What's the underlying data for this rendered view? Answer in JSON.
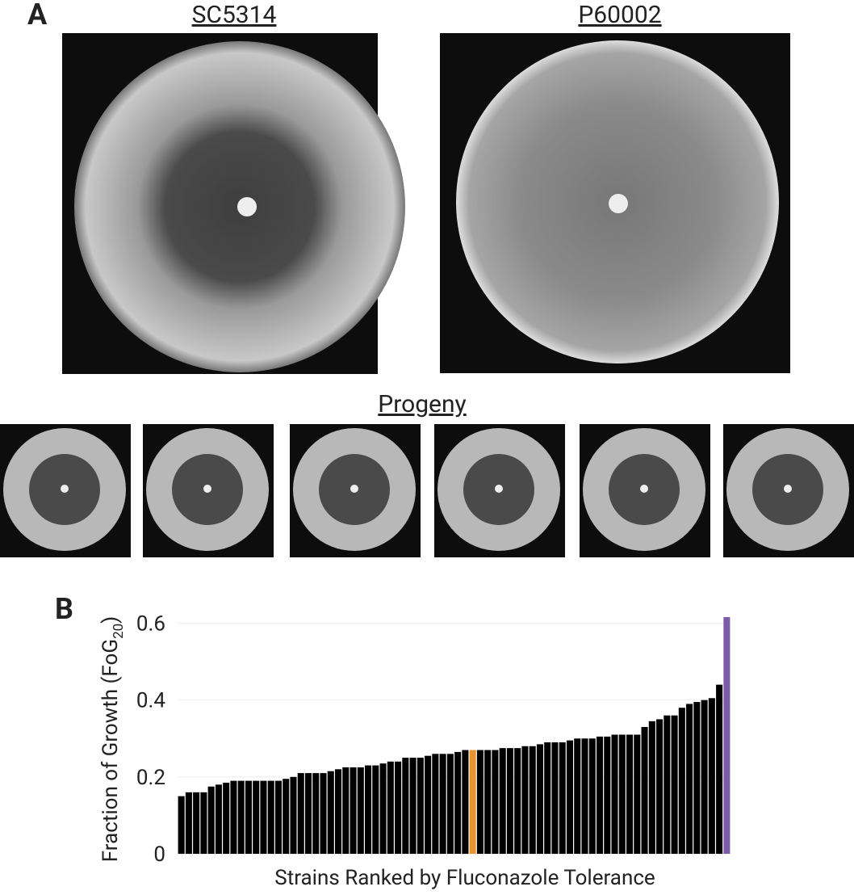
{
  "panel_a": {
    "label": "A",
    "strain_1": "SC5314",
    "strain_2": "P60002",
    "progeny": "Progeny"
  },
  "chart_data": {
    "type": "bar",
    "panel_label": "B",
    "ylabel_parts": [
      "Fraction of Growth (FoG",
      "20",
      ")"
    ],
    "xlabel": "Strains Ranked by Fluconazole Tolerance",
    "values": [
      0.15,
      0.16,
      0.16,
      0.16,
      0.175,
      0.18,
      0.185,
      0.19,
      0.19,
      0.19,
      0.19,
      0.19,
      0.19,
      0.19,
      0.195,
      0.2,
      0.21,
      0.21,
      0.21,
      0.21,
      0.215,
      0.22,
      0.225,
      0.225,
      0.225,
      0.23,
      0.23,
      0.235,
      0.24,
      0.24,
      0.25,
      0.25,
      0.25,
      0.255,
      0.26,
      0.26,
      0.26,
      0.265,
      0.27,
      0.27,
      0.27,
      0.27,
      0.27,
      0.275,
      0.275,
      0.275,
      0.28,
      0.28,
      0.285,
      0.29,
      0.29,
      0.29,
      0.295,
      0.3,
      0.3,
      0.3,
      0.305,
      0.305,
      0.31,
      0.31,
      0.31,
      0.31,
      0.33,
      0.345,
      0.35,
      0.36,
      0.36,
      0.38,
      0.39,
      0.395,
      0.4,
      0.405,
      0.44,
      0.616
    ],
    "color": "#000000",
    "highlights": [
      {
        "index": 39,
        "color": "#e8952e"
      },
      {
        "index": 73,
        "color": "#7d5ba6"
      }
    ],
    "ylim": [
      0,
      0.62
    ],
    "yticks": [
      0,
      0.2,
      0.4,
      0.6
    ],
    "grid": true
  }
}
